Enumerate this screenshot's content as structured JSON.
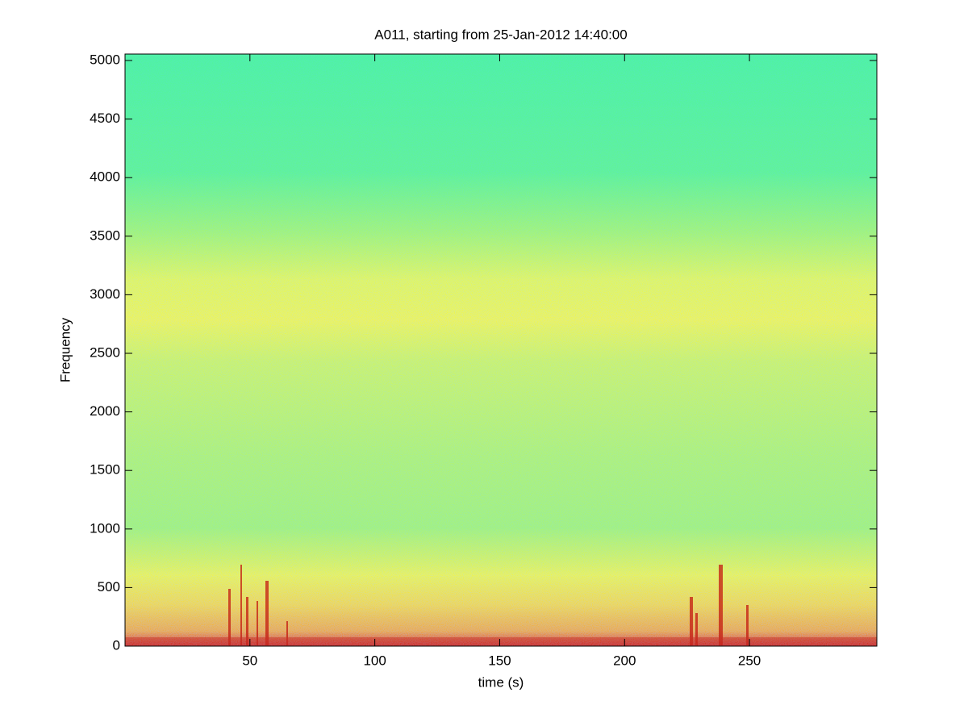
{
  "chart_data": {
    "type": "spectrogram",
    "title": "A011, starting from 25-Jan-2012 14:40:00",
    "x_label": "time (s)",
    "y_label": "Frequency",
    "xlim": [
      0,
      301
    ],
    "xticks": [
      50,
      100,
      150,
      200,
      250
    ],
    "ylim": [
      0,
      5055
    ],
    "yticks": [
      0,
      500,
      1000,
      1500,
      2000,
      2500,
      3000,
      3500,
      4000,
      4500,
      5000
    ]
  }
}
